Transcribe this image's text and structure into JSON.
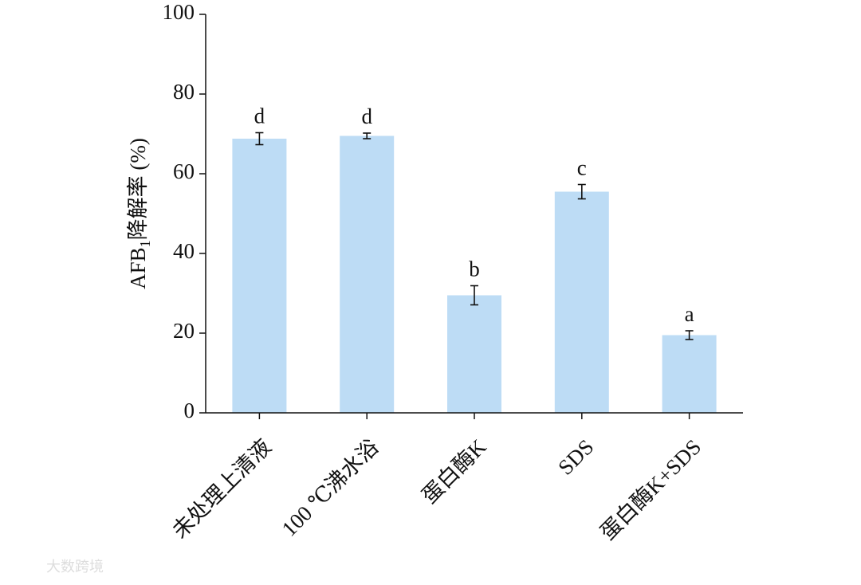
{
  "chart_data": {
    "type": "bar",
    "ylabel": [
      "AFB",
      "1",
      "降解率 (%)"
    ],
    "categories": [
      "未处理上清液",
      "100 ℃沸水浴",
      "蛋白酶K",
      "SDS",
      "蛋白酶K+SDS"
    ],
    "values": [
      68.8,
      69.5,
      29.5,
      55.5,
      19.5
    ],
    "errors": [
      1.5,
      0.7,
      2.4,
      1.8,
      1.1
    ],
    "letters": [
      "d",
      "d",
      "b",
      "c",
      "a"
    ],
    "color": "#bddcf5",
    "ylim": [
      0,
      100
    ],
    "yticks": [
      0,
      20,
      40,
      60,
      80,
      100
    ]
  },
  "watermark": "大数跨境"
}
